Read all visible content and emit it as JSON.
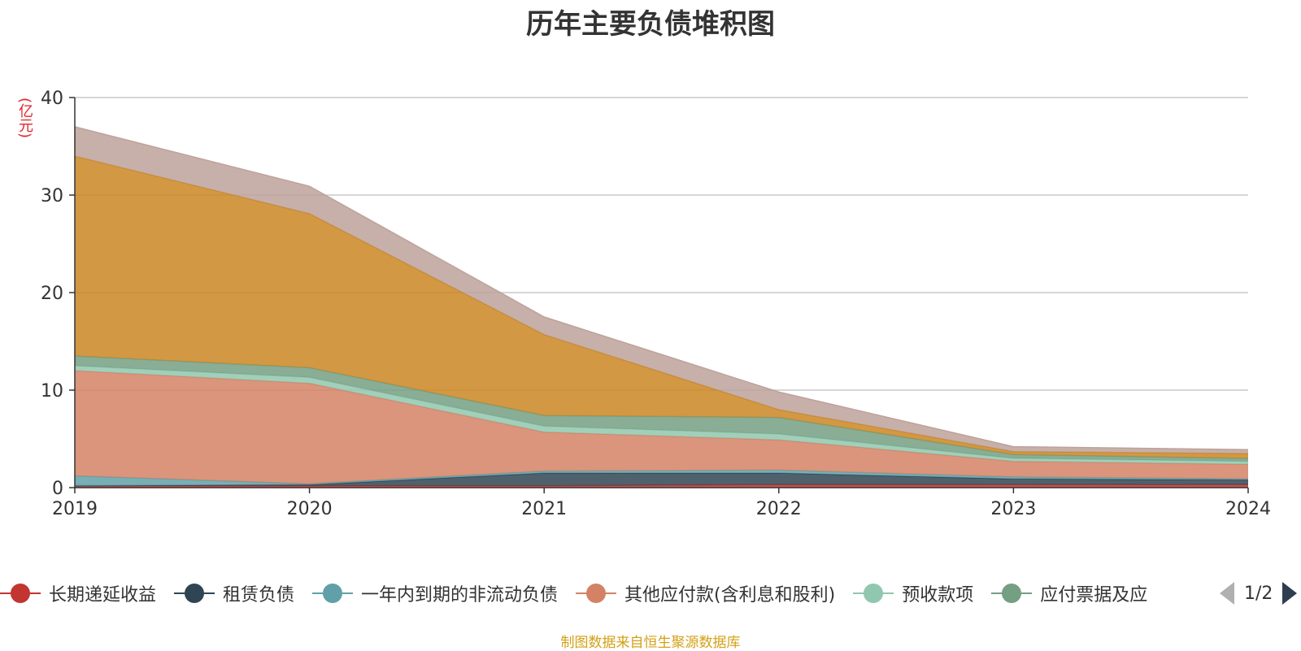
{
  "chart_data": {
    "type": "area",
    "stacked": true,
    "title": "历年主要负债堆积图",
    "y_unit": "(亿元)",
    "x": [
      "2019",
      "2020",
      "2021",
      "2022",
      "2023",
      "2024"
    ],
    "ylim": [
      0,
      40
    ],
    "yticks": [
      "0",
      "10",
      "20",
      "30",
      "40"
    ],
    "grid": true,
    "legend_position": "bottom",
    "series": [
      {
        "name": "长期递延收益",
        "color": "#c23531",
        "values": [
          0.2,
          0.2,
          0.2,
          0.3,
          0.3,
          0.3
        ],
        "in_legend": true
      },
      {
        "name": "租赁负债",
        "color": "#2f4554",
        "values": [
          0.0,
          0.1,
          1.3,
          1.2,
          0.6,
          0.5
        ],
        "in_legend": true
      },
      {
        "name": "一年内到期的非流动负债",
        "color": "#61a0a8",
        "values": [
          1.0,
          0.1,
          0.2,
          0.3,
          0.2,
          0.1
        ],
        "in_legend": true
      },
      {
        "name": "其他应付款(含利息和股利)",
        "color": "#d48265",
        "values": [
          10.8,
          10.3,
          4.0,
          3.1,
          1.6,
          1.5
        ],
        "in_legend": true
      },
      {
        "name": "预收款项",
        "color": "#91c7ae",
        "values": [
          0.5,
          0.6,
          0.6,
          0.6,
          0.3,
          0.3
        ],
        "in_legend": true
      },
      {
        "name": "应付票据及应付账款",
        "color": "#749f83",
        "values": [
          1.0,
          1.0,
          1.1,
          1.7,
          0.4,
          0.3
        ],
        "in_legend": true
      },
      {
        "name": "",
        "color": "#ca8622",
        "values": [
          20.5,
          15.8,
          8.3,
          0.8,
          0.3,
          0.5
        ],
        "in_legend": false
      },
      {
        "name": "",
        "color": "#bda29a",
        "values": [
          3.0,
          2.8,
          1.8,
          1.8,
          0.5,
          0.4
        ],
        "in_legend": false
      }
    ]
  },
  "legend": {
    "visible_text": [
      "长期递延收益",
      "租赁负债",
      "一年内到期的非流动负债",
      "其他应付款(含利息和股利)",
      "预收款项",
      "应付票据及应"
    ],
    "pager_text": "1/2"
  },
  "source_note": "制图数据来自恒生聚源数据库"
}
